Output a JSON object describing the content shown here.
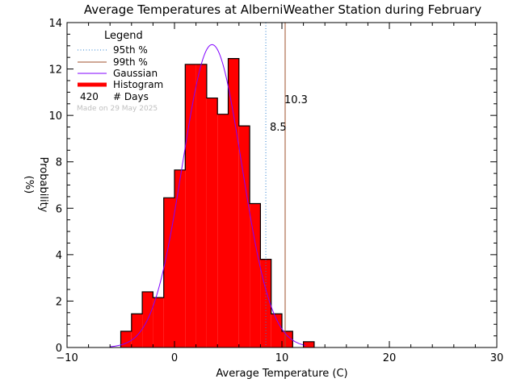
{
  "chart_data": {
    "type": "bar",
    "title": "Average Temperatures at AlberniWeather Station during February",
    "xlabel": "Average Temperature (C)",
    "ylabel_top": "Probability",
    "ylabel_bottom": "(%)",
    "xlim": [
      -10,
      30
    ],
    "ylim": [
      0,
      14
    ],
    "xticks": [
      "−10",
      "0",
      "10",
      "20",
      "30"
    ],
    "xtick_values": [
      -10,
      0,
      10,
      20,
      30
    ],
    "yticks": [
      "0",
      "2",
      "4",
      "6",
      "8",
      "10",
      "12",
      "14"
    ],
    "ytick_values": [
      0,
      2,
      4,
      6,
      8,
      10,
      12,
      14
    ],
    "bin_width": 1,
    "bins_left": [
      -5,
      -4,
      -3,
      -2,
      -1,
      0,
      1,
      2,
      3,
      4,
      5,
      6,
      7,
      8,
      9,
      10,
      11,
      12
    ],
    "values": [
      0.7,
      1.45,
      2.4,
      2.15,
      6.45,
      7.65,
      12.2,
      12.2,
      10.75,
      10.05,
      12.45,
      9.55,
      6.2,
      3.8,
      1.45,
      0.7,
      0.0,
      0.25
    ],
    "gaussian": {
      "mean": 3.5,
      "peak": 13.05,
      "sigma": 2.75,
      "x_range": [
        -6,
        12.2
      ]
    },
    "percentile_95": {
      "value": 8.5,
      "label": "8.5",
      "color": "#2a7fd0"
    },
    "percentile_99": {
      "value": 10.3,
      "label": "10.3",
      "color": "#a0522d"
    },
    "colors": {
      "bar_fill": "#ff0000",
      "bar_edge": "#000000",
      "gaussian": "#8000ff"
    },
    "legend": {
      "title": "Legend",
      "items": [
        {
          "label": "95th %",
          "style": "dotted",
          "color": "#2a7fd0"
        },
        {
          "label": "99th %",
          "style": "solid",
          "color": "#a0522d"
        },
        {
          "label": "Gaussian",
          "style": "solid",
          "color": "#8000ff"
        },
        {
          "label": "Histogram",
          "style": "thick",
          "color": "#ff0000"
        }
      ],
      "days_count": "420",
      "days_label": "# Days",
      "made_on": "Made on 29 May 2025"
    }
  }
}
